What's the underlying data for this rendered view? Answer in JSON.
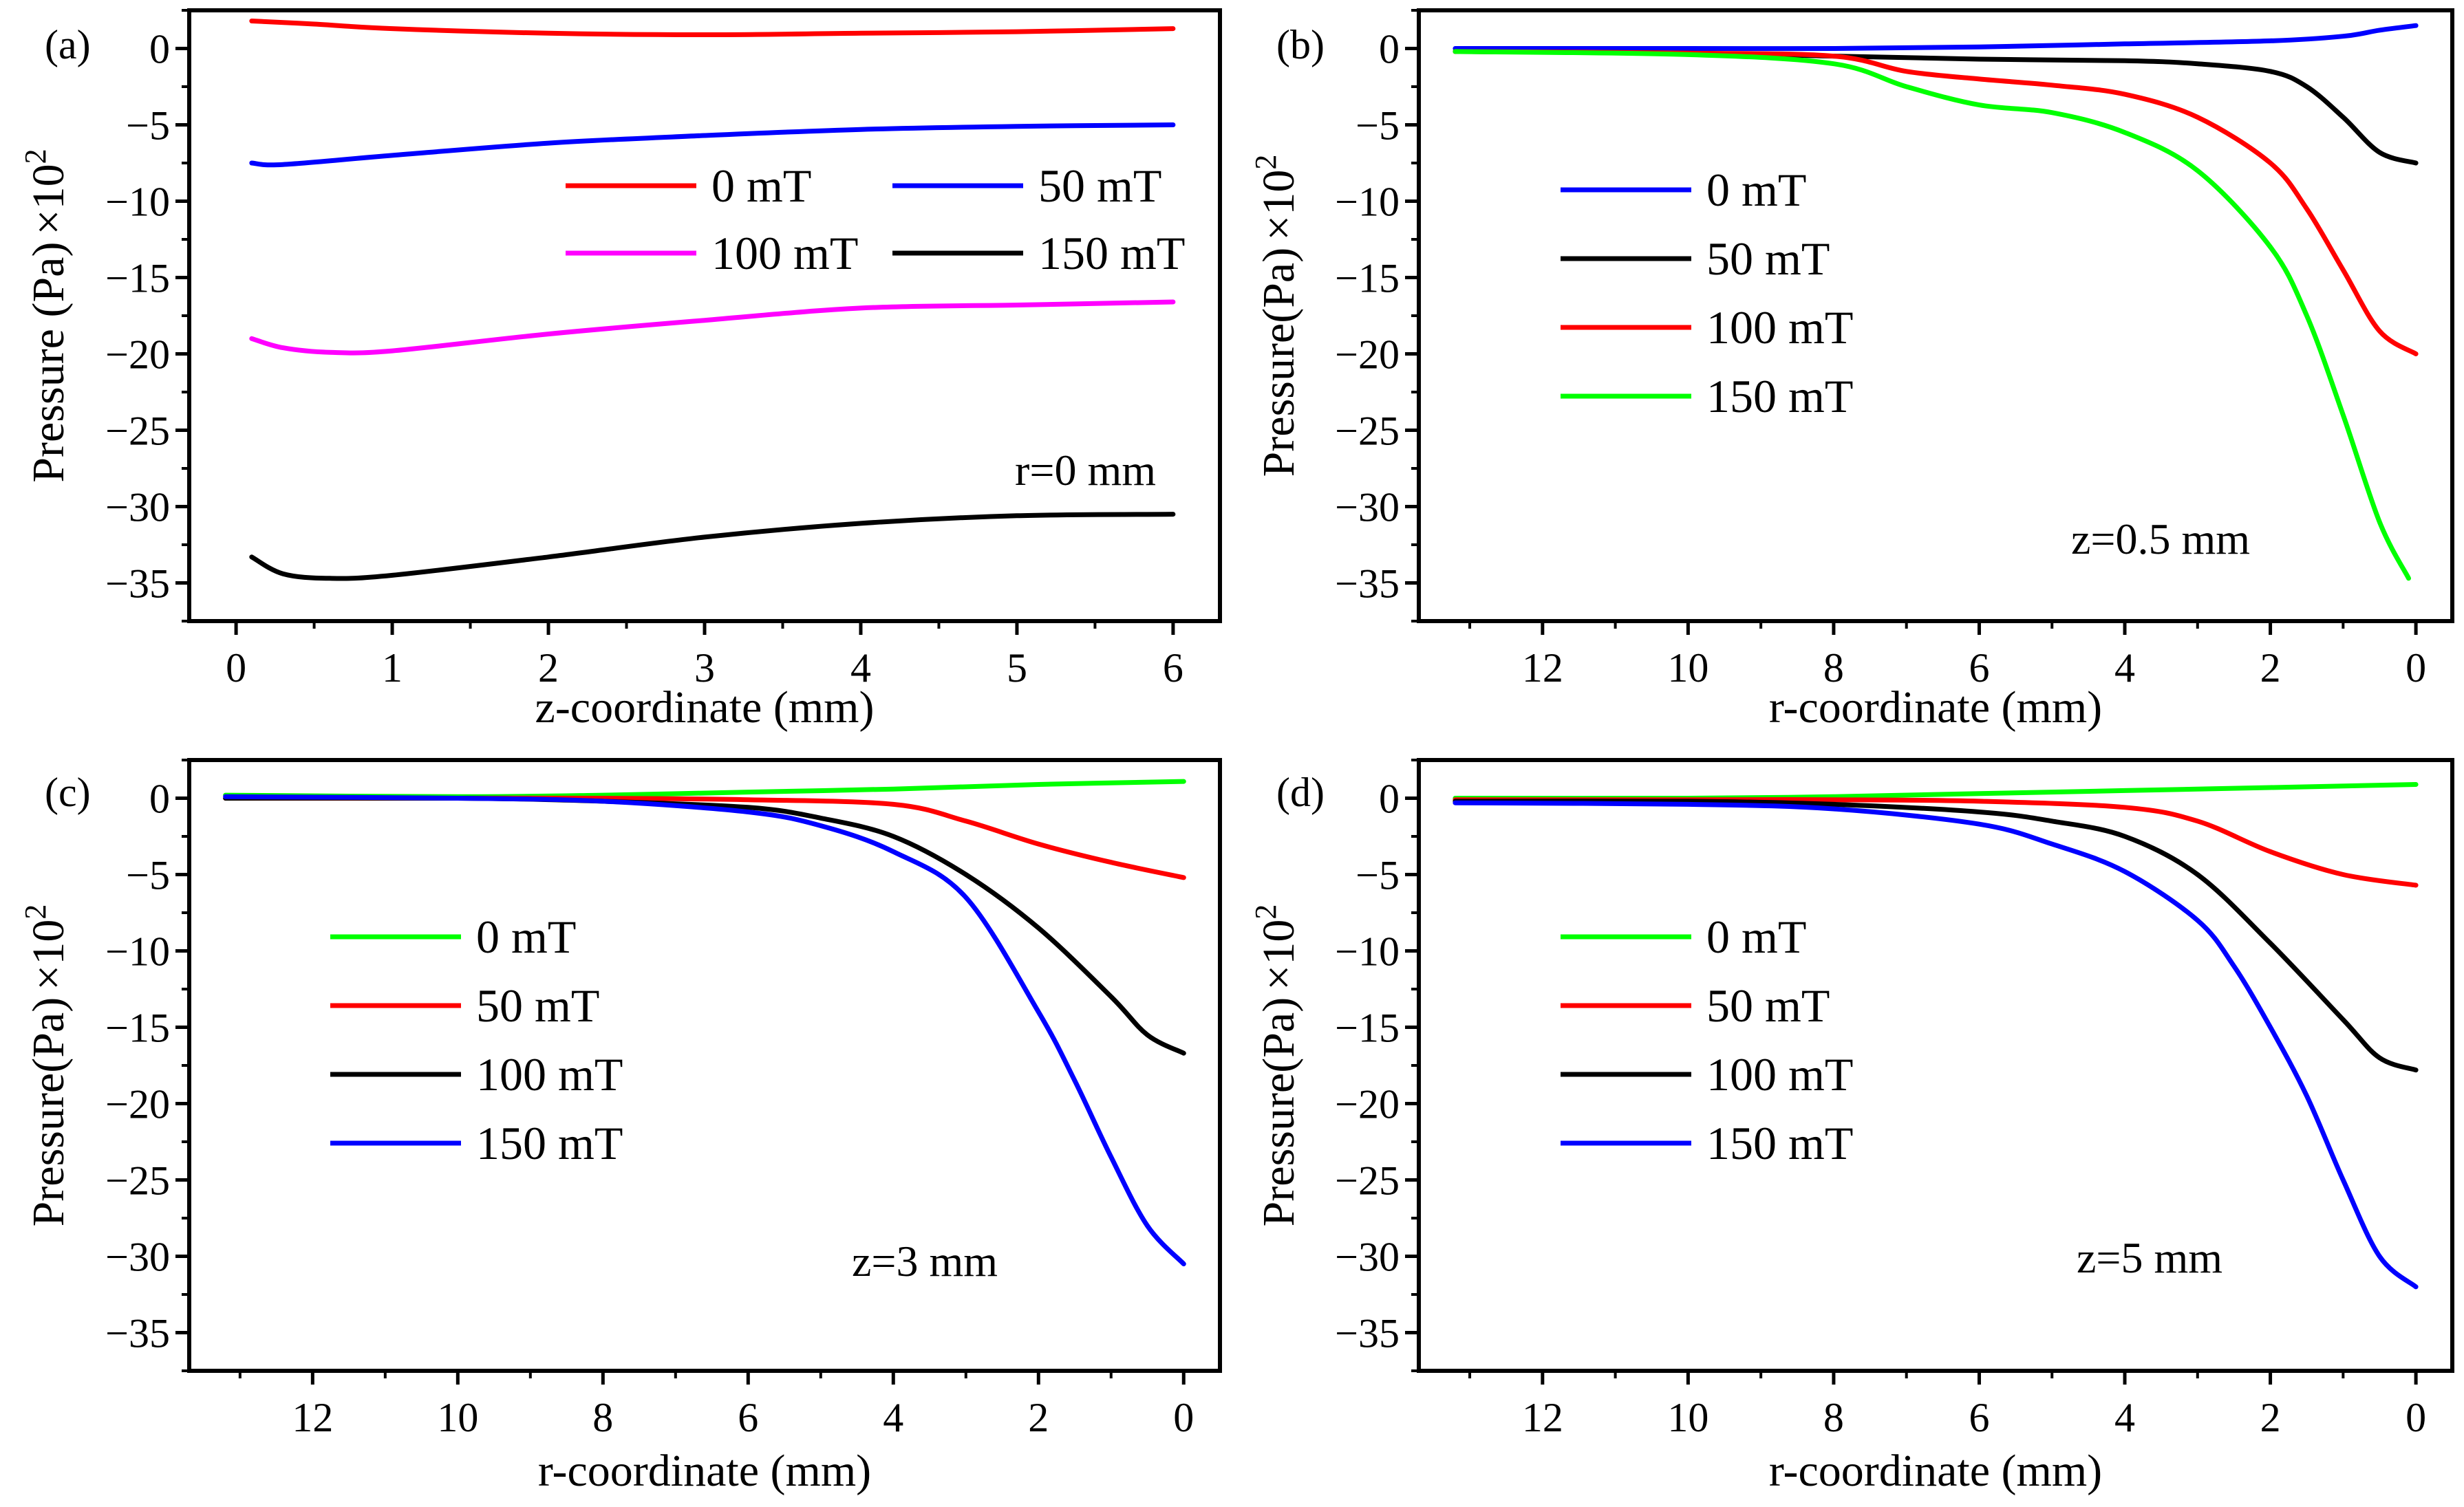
{
  "chart_data": [
    {
      "type": "line",
      "panel_label": "(a)",
      "xlabel": "z-coordinate (mm)",
      "ylabel": "Pressure (Pa)",
      "ylabel_suffix": "×10",
      "ylabel_exp": "2",
      "annotation": "r=0 mm",
      "xlim": [
        -0.3,
        6.3
      ],
      "ylim": [
        -37.5,
        2.5
      ],
      "x_reversed": false,
      "xticks": [
        0,
        1,
        2,
        3,
        4,
        5,
        6
      ],
      "yticks": [
        0,
        -5,
        -10,
        -15,
        -20,
        -25,
        -30,
        -35
      ],
      "tick_labels_x": [
        "0",
        "1",
        "2",
        "3",
        "4",
        "5",
        "6"
      ],
      "tick_labels_y": [
        "0",
        "−5",
        "−10",
        "−15",
        "−20",
        "−25",
        "−30",
        "−35"
      ],
      "legend_layout": "two-column",
      "legend_position": "top-right",
      "series": [
        {
          "name": "0 mT",
          "color": "#ff0000",
          "x": [
            0.1,
            0.5,
            1,
            2,
            3,
            4,
            5,
            6
          ],
          "y": [
            1.8,
            1.6,
            1.3,
            1.0,
            0.9,
            1.0,
            1.1,
            1.3
          ]
        },
        {
          "name": "50 mT",
          "color": "#0000ff",
          "x": [
            0.1,
            0.3,
            1,
            2,
            3,
            4,
            5,
            6
          ],
          "y": [
            -7.5,
            -7.6,
            -7.0,
            -6.2,
            -5.7,
            -5.3,
            -5.1,
            -5.0
          ]
        },
        {
          "name": "100 mT",
          "color": "#ff00ff",
          "x": [
            0.1,
            0.3,
            0.6,
            1,
            2,
            3,
            4,
            5,
            6
          ],
          "y": [
            -19.0,
            -19.6,
            -19.9,
            -19.8,
            -18.7,
            -17.8,
            -17.0,
            -16.8,
            -16.6
          ]
        },
        {
          "name": "150 mT",
          "color": "#000000",
          "x": [
            0.1,
            0.3,
            0.6,
            1,
            2,
            3,
            4,
            5,
            6
          ],
          "y": [
            -33.3,
            -34.4,
            -34.7,
            -34.5,
            -33.3,
            -32.0,
            -31.1,
            -30.6,
            -30.5
          ]
        }
      ]
    },
    {
      "type": "line",
      "panel_label": "(b)",
      "xlabel": "r-coordinate (mm)",
      "ylabel": "Pressure(Pa)",
      "ylabel_suffix": "×10",
      "ylabel_exp": "2",
      "annotation": "z=0.5 mm",
      "xlim": [
        13.7,
        -0.5
      ],
      "ylim": [
        -37.5,
        2.5
      ],
      "x_reversed": true,
      "xticks": [
        12,
        10,
        8,
        6,
        4,
        2,
        0
      ],
      "yticks": [
        0,
        -5,
        -10,
        -15,
        -20,
        -25,
        -30,
        -35
      ],
      "tick_labels_x": [
        "12",
        "10",
        "8",
        "6",
        "4",
        "2",
        "0"
      ],
      "tick_labels_y": [
        "0",
        "−5",
        "−10",
        "−15",
        "−20",
        "−25",
        "−30",
        "−35"
      ],
      "legend_layout": "one-column",
      "legend_position": "center-left",
      "series": [
        {
          "name": "0 mT",
          "color": "#0000ff",
          "x": [
            13.2,
            10,
            8,
            6,
            4,
            2,
            1,
            0.5,
            0
          ],
          "y": [
            0,
            0,
            0,
            0.1,
            0.3,
            0.5,
            0.8,
            1.2,
            1.5
          ]
        },
        {
          "name": "50 mT",
          "color": "#000000",
          "x": [
            13.2,
            10,
            8,
            6,
            4,
            3,
            2,
            1.5,
            1,
            0.5,
            0
          ],
          "y": [
            -0.2,
            -0.3,
            -0.5,
            -0.7,
            -0.8,
            -1.0,
            -1.5,
            -2.5,
            -4.5,
            -6.8,
            -7.5
          ]
        },
        {
          "name": "100 mT",
          "color": "#ff0000",
          "x": [
            13.2,
            10,
            8,
            7,
            6,
            5,
            4,
            3,
            2,
            1.5,
            1,
            0.5,
            0
          ],
          "y": [
            -0.2,
            -0.3,
            -0.5,
            -1.5,
            -2.0,
            -2.4,
            -3.0,
            -4.5,
            -7.5,
            -10.5,
            -14.5,
            -18.5,
            -20.0
          ]
        },
        {
          "name": "150 mT",
          "color": "#00ff00",
          "x": [
            13.2,
            10,
            8,
            7,
            6,
            5,
            4,
            3,
            2,
            1.5,
            1,
            0.5,
            0.1
          ],
          "y": [
            -0.2,
            -0.4,
            -1.0,
            -2.5,
            -3.7,
            -4.2,
            -5.5,
            -8.0,
            -13.0,
            -17.5,
            -24.0,
            -31.0,
            -34.7
          ]
        }
      ]
    },
    {
      "type": "line",
      "panel_label": "(c)",
      "xlabel": "r-coordinate (mm)",
      "ylabel": "Pressure(Pa)",
      "ylabel_suffix": "×10",
      "ylabel_exp": "2",
      "annotation": "z=3 mm",
      "xlim": [
        13.7,
        -0.5
      ],
      "ylim": [
        -37.5,
        2.5
      ],
      "x_reversed": true,
      "xticks": [
        12,
        10,
        8,
        6,
        4,
        2,
        0
      ],
      "yticks": [
        0,
        -5,
        -10,
        -15,
        -20,
        -25,
        -30,
        -35
      ],
      "tick_labels_x": [
        "12",
        "10",
        "8",
        "6",
        "4",
        "2",
        "0"
      ],
      "tick_labels_y": [
        "0",
        "−5",
        "−10",
        "−15",
        "−20",
        "−25",
        "−30",
        "−35"
      ],
      "legend_layout": "one-column",
      "legend_position": "center-left",
      "series": [
        {
          "name": "0 mT",
          "color": "#00ff00",
          "x": [
            13.2,
            10,
            8,
            6,
            4,
            2,
            0
          ],
          "y": [
            0.2,
            0.1,
            0.2,
            0.4,
            0.6,
            0.9,
            1.1
          ]
        },
        {
          "name": "50 mT",
          "color": "#ff0000",
          "x": [
            13.2,
            10,
            8,
            6,
            4,
            3,
            2,
            1,
            0
          ],
          "y": [
            0,
            0,
            0,
            -0.1,
            -0.4,
            -1.5,
            -3.0,
            -4.2,
            -5.2
          ]
        },
        {
          "name": "100 mT",
          "color": "#000000",
          "x": [
            13.2,
            10,
            8,
            6,
            5,
            4,
            3,
            2,
            1,
            0.5,
            0
          ],
          "y": [
            0,
            0,
            -0.2,
            -0.6,
            -1.3,
            -2.5,
            -5.0,
            -8.5,
            -13.0,
            -15.5,
            -16.7
          ]
        },
        {
          "name": "150 mT",
          "color": "#0000ff",
          "x": [
            13.2,
            10,
            8,
            6,
            5,
            4,
            3,
            2,
            1.5,
            1,
            0.5,
            0
          ],
          "y": [
            0.1,
            0,
            -0.2,
            -0.9,
            -1.8,
            -3.5,
            -6.5,
            -14.0,
            -18.5,
            -23.5,
            -28.0,
            -30.5
          ]
        }
      ]
    },
    {
      "type": "line",
      "panel_label": "(d)",
      "xlabel": "r-coordinate (mm)",
      "ylabel": "Pressure(Pa)",
      "ylabel_suffix": "×10",
      "ylabel_exp": "2",
      "annotation": "z=5 mm",
      "xlim": [
        13.7,
        -0.5
      ],
      "ylim": [
        -37.5,
        2.5
      ],
      "x_reversed": true,
      "xticks": [
        12,
        10,
        8,
        6,
        4,
        2,
        0
      ],
      "yticks": [
        0,
        -5,
        -10,
        -15,
        -20,
        -25,
        -30,
        -35
      ],
      "tick_labels_x": [
        "12",
        "10",
        "8",
        "6",
        "4",
        "2",
        "0"
      ],
      "tick_labels_y": [
        "0",
        "−5",
        "−10",
        "−15",
        "−20",
        "−25",
        "−30",
        "−35"
      ],
      "legend_layout": "one-column",
      "legend_position": "center-left",
      "series": [
        {
          "name": "0 mT",
          "color": "#00ff00",
          "x": [
            13.2,
            10,
            8,
            6,
            4,
            2,
            0
          ],
          "y": [
            0,
            0,
            0.1,
            0.3,
            0.5,
            0.7,
            0.9
          ]
        },
        {
          "name": "50 mT",
          "color": "#ff0000",
          "x": [
            13.2,
            10,
            8,
            6,
            4,
            3,
            2,
            1,
            0
          ],
          "y": [
            -0.1,
            -0.1,
            -0.1,
            -0.2,
            -0.6,
            -1.5,
            -3.5,
            -5.0,
            -5.7
          ]
        },
        {
          "name": "100 mT",
          "color": "#000000",
          "x": [
            13.2,
            10,
            8,
            6,
            5,
            4,
            3,
            2,
            1,
            0.5,
            0
          ],
          "y": [
            -0.2,
            -0.2,
            -0.4,
            -0.9,
            -1.5,
            -2.5,
            -5.0,
            -9.5,
            -14.5,
            -17.0,
            -17.8
          ]
        },
        {
          "name": "150 mT",
          "color": "#0000ff",
          "x": [
            13.2,
            10,
            8,
            6,
            5,
            4,
            3,
            2.5,
            2,
            1.5,
            1,
            0.5,
            0
          ],
          "y": [
            -0.3,
            -0.4,
            -0.7,
            -1.7,
            -3.0,
            -4.8,
            -8.0,
            -11.0,
            -15.0,
            -19.5,
            -25.0,
            -30.0,
            -32.0
          ]
        }
      ]
    }
  ]
}
